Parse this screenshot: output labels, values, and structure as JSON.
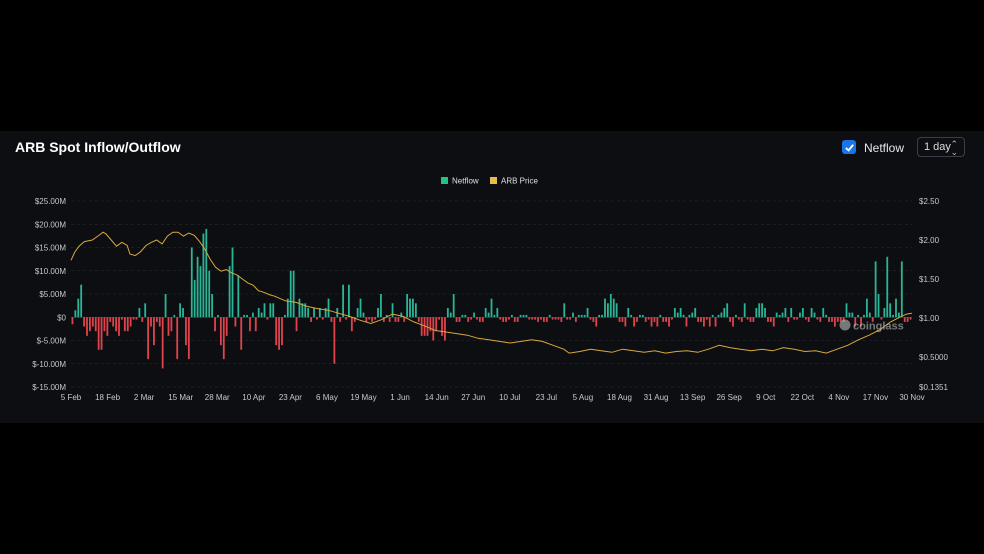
{
  "header": {
    "title": "ARB Spot Inflow/Outflow",
    "checkbox_label": "Netflow",
    "interval": "1 day"
  },
  "watermark": "coinglass",
  "colors": {
    "inflow": "#2bb597",
    "outflow": "#e0434b",
    "price": "#d8a93c",
    "legend_netflow": "#26c281",
    "legend_price": "#e9b949"
  },
  "chart_data": {
    "type": "bar",
    "x_ticks": [
      "5 Feb",
      "18 Feb",
      "2 Mar",
      "15 Mar",
      "28 Mar",
      "10 Apr",
      "23 Apr",
      "6 May",
      "19 May",
      "1 Jun",
      "14 Jun",
      "27 Jun",
      "10 Jul",
      "23 Jul",
      "5 Aug",
      "18 Aug",
      "31 Aug",
      "13 Sep",
      "26 Sep",
      "9 Oct",
      "22 Oct",
      "4 Nov",
      "17 Nov",
      "30 Nov"
    ],
    "y_left_ticks": [
      "$25.00M",
      "$20.00M",
      "$15.00M",
      "$10.00M",
      "$5.00M",
      "$0",
      "$-5.00M",
      "$-10.00M",
      "$-15.00M"
    ],
    "y_left_lim": [
      -15,
      25
    ],
    "y_right_ticks": [
      "$2.50",
      "$2.00",
      "$1.50",
      "$1.00",
      "$0.5000",
      "$0.1351"
    ],
    "y_right_lim": [
      0.1351,
      2.5
    ],
    "series": [
      {
        "name": "Netflow",
        "unit": "M USD",
        "values": [
          -1.5,
          1.5,
          4,
          7,
          -2,
          -4,
          -3,
          -2,
          -3,
          -7,
          -7,
          -3,
          -4,
          -1,
          -2,
          -3,
          -4,
          -0.5,
          -3,
          -3,
          -2,
          -0.5,
          -0.5,
          2,
          -1,
          3,
          -9,
          -2,
          -6,
          -1,
          -2,
          -11,
          5,
          -4,
          -3,
          0.5,
          -9,
          3,
          2,
          -6,
          -9,
          15,
          8,
          13,
          11,
          18,
          19,
          10,
          5,
          -3,
          0.5,
          -6,
          -9,
          -4,
          11,
          15,
          -2,
          9,
          -7,
          0.5,
          0.5,
          -3,
          1,
          -3,
          2,
          1,
          3,
          -0.5,
          3,
          3,
          -6,
          -7,
          -6,
          0.5,
          4,
          10,
          10,
          -3,
          4,
          3,
          3,
          2,
          -1,
          2,
          -0.5,
          2,
          -0.5,
          2,
          4,
          -1,
          -10,
          2,
          -1,
          7,
          -0.5,
          7,
          -3,
          -1,
          2,
          4,
          1,
          -1,
          -0.5,
          -1,
          -0.5,
          2,
          5,
          -1,
          0.5,
          -1,
          3,
          -1,
          -1,
          1,
          -1,
          5,
          4,
          4,
          3,
          -1,
          -4,
          -4,
          -4,
          -3,
          -5,
          -3,
          -0.5,
          -4,
          -5,
          2,
          1,
          5,
          -1,
          -1,
          0.5,
          0.5,
          -1,
          -0.5,
          1,
          -0.5,
          -1,
          -1,
          2,
          1,
          4,
          0.5,
          2,
          -0.5,
          -1,
          -1,
          -0.5,
          0.5,
          -1,
          -1,
          0.5,
          0.5,
          0.5,
          -0.5,
          -0.5,
          -0.5,
          -1,
          -0.5,
          -1,
          -1,
          0.5,
          -0.5,
          -0.5,
          -0.5,
          -1,
          3,
          -0.5,
          -0.5,
          1,
          -1,
          0.5,
          0.5,
          0.5,
          2,
          -0.5,
          -1,
          -2,
          0.5,
          0.5,
          4,
          3,
          5,
          4,
          3,
          -1,
          -1,
          -2,
          2,
          0.5,
          -2,
          -1,
          0.5,
          0.5,
          -1,
          -0.5,
          -2,
          -1,
          -2,
          0.5,
          -1,
          -1,
          -2,
          -0.5,
          2,
          1,
          2,
          0.5,
          -2,
          0.5,
          1,
          2,
          -1,
          -1,
          -2,
          -0.5,
          -2,
          0.5,
          -2,
          0.5,
          1,
          2,
          3,
          -1,
          -2,
          0.5,
          -0.5,
          -1,
          3,
          -0.5,
          -1,
          -1,
          2,
          3,
          3,
          2,
          -1,
          -1,
          -2,
          1,
          0.5,
          1,
          2,
          -1,
          2,
          -0.5,
          -0.5,
          1,
          2,
          -0.5,
          -1,
          2,
          1,
          -0.5,
          -1,
          2,
          0.5,
          -1,
          -1,
          -2,
          -1,
          -1,
          -1,
          3,
          1,
          1,
          -2,
          0.5,
          -2,
          0.5,
          4,
          1,
          -1,
          12,
          5,
          -0.5,
          2,
          13,
          3,
          0.5,
          4,
          1,
          12,
          -1,
          -1,
          -0.5
        ]
      },
      {
        "name": "ARB Price",
        "axis": "right",
        "unit": "USD",
        "points": [
          [
            0,
            1.74
          ],
          [
            1.5,
            1.85
          ],
          [
            3,
            1.92
          ],
          [
            5,
            1.98
          ],
          [
            8,
            2.0
          ],
          [
            10,
            2.05
          ],
          [
            12,
            2.1
          ],
          [
            13,
            2.08
          ],
          [
            15,
            2.0
          ],
          [
            17,
            1.92
          ],
          [
            19,
            1.97
          ],
          [
            21,
            1.93
          ],
          [
            22,
            1.82
          ],
          [
            24,
            1.8
          ],
          [
            26,
            1.85
          ],
          [
            28,
            1.93
          ],
          [
            30,
            1.97
          ],
          [
            32,
            2.0
          ],
          [
            34,
            1.95
          ],
          [
            36,
            2.05
          ],
          [
            38,
            2.1
          ],
          [
            40,
            2.1
          ],
          [
            42,
            2.05
          ],
          [
            44,
            2.09
          ],
          [
            46,
            2.06
          ],
          [
            48,
            1.98
          ],
          [
            50,
            1.88
          ],
          [
            52,
            1.75
          ],
          [
            54,
            1.65
          ],
          [
            56,
            1.6
          ],
          [
            58,
            1.62
          ],
          [
            60,
            1.58
          ],
          [
            62,
            1.55
          ],
          [
            64,
            1.5
          ],
          [
            66,
            1.45
          ],
          [
            68,
            1.42
          ],
          [
            70,
            1.35
          ],
          [
            72,
            1.33
          ],
          [
            74,
            1.3
          ],
          [
            76,
            1.28
          ],
          [
            80,
            1.22
          ],
          [
            84,
            1.2
          ],
          [
            88,
            1.15
          ],
          [
            92,
            1.12
          ],
          [
            96,
            1.1
          ],
          [
            100,
            1.06
          ],
          [
            104,
            1.02
          ],
          [
            108,
            0.97
          ],
          [
            112,
            0.93
          ],
          [
            116,
            0.98
          ],
          [
            120,
            1.05
          ],
          [
            124,
            1.02
          ],
          [
            128,
            0.95
          ],
          [
            132,
            0.9
          ],
          [
            136,
            0.84
          ],
          [
            140,
            0.82
          ],
          [
            144,
            0.8
          ],
          [
            148,
            0.78
          ],
          [
            152,
            0.74
          ],
          [
            156,
            0.72
          ],
          [
            160,
            0.7
          ],
          [
            164,
            0.68
          ],
          [
            168,
            0.7
          ],
          [
            172,
            0.72
          ],
          [
            176,
            0.7
          ],
          [
            180,
            0.65
          ],
          [
            184,
            0.6
          ],
          [
            186,
            0.55
          ],
          [
            190,
            0.57
          ],
          [
            194,
            0.6
          ],
          [
            198,
            0.58
          ],
          [
            202,
            0.56
          ],
          [
            206,
            0.6
          ],
          [
            210,
            0.58
          ],
          [
            214,
            0.56
          ],
          [
            218,
            0.58
          ],
          [
            222,
            0.55
          ],
          [
            226,
            0.57
          ],
          [
            230,
            0.58
          ],
          [
            234,
            0.56
          ],
          [
            238,
            0.6
          ],
          [
            242,
            0.65
          ],
          [
            246,
            0.62
          ],
          [
            250,
            0.6
          ],
          [
            254,
            0.58
          ],
          [
            258,
            0.6
          ],
          [
            262,
            0.58
          ],
          [
            266,
            0.62
          ],
          [
            270,
            0.6
          ],
          [
            274,
            0.57
          ],
          [
            278,
            0.58
          ],
          [
            282,
            0.55
          ],
          [
            286,
            0.6
          ],
          [
            290,
            0.65
          ],
          [
            294,
            0.72
          ],
          [
            298,
            0.78
          ],
          [
            302,
            0.85
          ],
          [
            306,
            0.95
          ],
          [
            310,
            1.02
          ],
          [
            312,
            1.05
          ],
          [
            314,
            1.06
          ]
        ]
      }
    ],
    "legend": [
      "Netflow",
      "ARB Price"
    ],
    "legend_position": "top-center",
    "grid": true
  }
}
